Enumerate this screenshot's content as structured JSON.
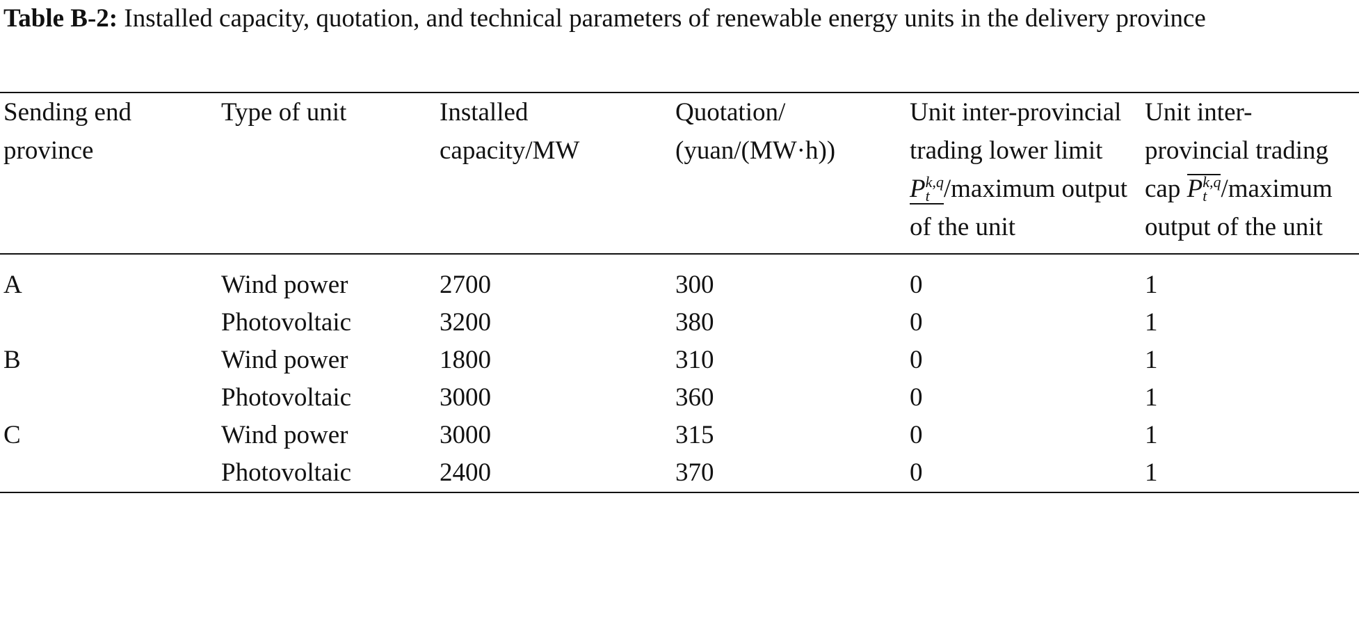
{
  "caption": {
    "label": "Table B-2:",
    "text": "Installed capacity, quotation, and technical parameters of renewable energy units in the delivery province"
  },
  "table": {
    "columns": [
      "Sending end province",
      "Type of unit",
      "Installed capacity/MW",
      "Quotation/ (yuan/(MW·h))",
      {
        "text": "Unit inter-provincial trading lower limit",
        "symbol": "P",
        "subscript": "t",
        "superscript": "k,q",
        "bar": "under",
        "suffix": "/maximum output of the unit"
      },
      {
        "text": "Unit inter-provincial trading cap",
        "symbol": "P",
        "subscript": "t",
        "superscript": "k,q",
        "bar": "over",
        "suffix": "/maximum output of the unit"
      }
    ],
    "groups": [
      {
        "province": "A",
        "units": [
          {
            "type": "Wind power",
            "capacity": 2700,
            "quotation": 300,
            "lower_limit": 0,
            "cap": 1
          },
          {
            "type": "Photovoltaic",
            "capacity": 3200,
            "quotation": 380,
            "lower_limit": 0,
            "cap": 1
          }
        ]
      },
      {
        "province": "B",
        "units": [
          {
            "type": "Wind power",
            "capacity": 1800,
            "quotation": 310,
            "lower_limit": 0,
            "cap": 1
          },
          {
            "type": "Photovoltaic",
            "capacity": 3000,
            "quotation": 360,
            "lower_limit": 0,
            "cap": 1
          }
        ]
      },
      {
        "province": "C",
        "units": [
          {
            "type": "Wind power",
            "capacity": 3000,
            "quotation": 315,
            "lower_limit": 0,
            "cap": 1
          },
          {
            "type": "Photovoltaic",
            "capacity": 2400,
            "quotation": 370,
            "lower_limit": 0,
            "cap": 1
          }
        ]
      }
    ]
  }
}
